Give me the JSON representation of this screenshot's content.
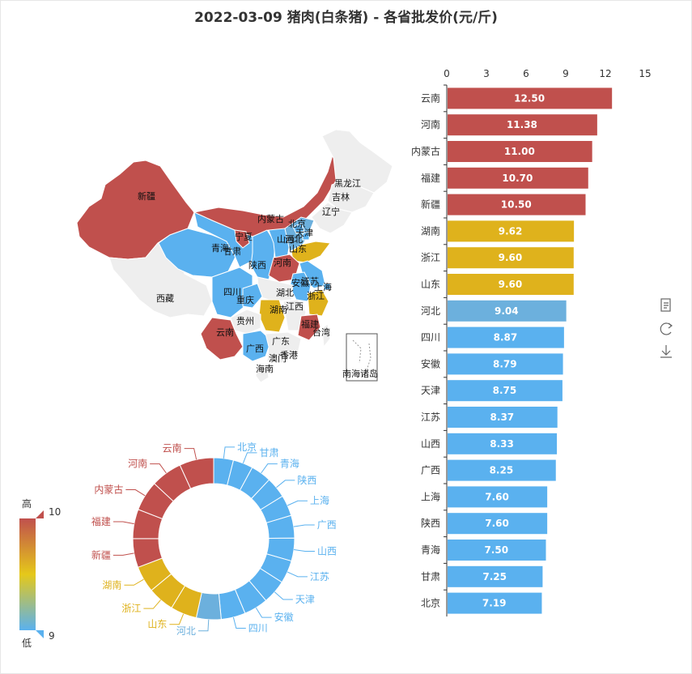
{
  "title": "2022-03-09 猪肉(白条猪) - 各省批发价(元/斤)",
  "colors": {
    "high": "#c0504d",
    "mid": "#dfb21c",
    "low": "#5ab1ef",
    "low2": "#6cb0dd",
    "none": "#eeeeee"
  },
  "visual_map": {
    "high_label": "高",
    "low_label": "低",
    "max": "10",
    "min": "9"
  },
  "map_labels": [
    "新疆",
    "西藏",
    "青海",
    "甘肃",
    "内蒙古",
    "宁夏",
    "陕西",
    "四川",
    "重庆",
    "云南",
    "贵州",
    "广西",
    "广东",
    "海南",
    "湖南",
    "湖北",
    "河南",
    "山西",
    "河北",
    "北京",
    "天津",
    "辽宁",
    "吉林",
    "黑龙江",
    "山东",
    "江苏",
    "安徽",
    "上海",
    "浙江",
    "江西",
    "福建",
    "台湾",
    "澳门",
    "香港",
    "南海诸岛"
  ],
  "toolbox": [
    "data-view-icon",
    "restore-icon",
    "save-image-icon"
  ],
  "chart_data": [
    {
      "type": "bar",
      "orientation": "horizontal",
      "xlim": [
        0,
        15
      ],
      "ticks": [
        "0",
        "3",
        "6",
        "9",
        "12",
        "15"
      ],
      "categories": [
        "云南",
        "河南",
        "内蒙古",
        "福建",
        "新疆",
        "湖南",
        "浙江",
        "山东",
        "河北",
        "四川",
        "安徽",
        "天津",
        "江苏",
        "山西",
        "广西",
        "上海",
        "陕西",
        "青海",
        "甘肃",
        "北京"
      ],
      "values": [
        12.5,
        11.38,
        11.0,
        10.7,
        10.5,
        9.62,
        9.6,
        9.6,
        9.04,
        8.87,
        8.79,
        8.75,
        8.37,
        8.33,
        8.25,
        7.6,
        7.6,
        7.5,
        7.25,
        7.19
      ],
      "labels": [
        "12.50",
        "11.38",
        "11.00",
        "10.70",
        "10.50",
        "9.62",
        "9.60",
        "9.60",
        "9.04",
        "8.87",
        "8.79",
        "8.75",
        "8.37",
        "8.33",
        "8.25",
        "7.60",
        "7.60",
        "7.50",
        "7.25",
        "7.19"
      ],
      "colors": [
        "#c0504d",
        "#c0504d",
        "#c0504d",
        "#c0504d",
        "#c0504d",
        "#dfb21c",
        "#dfb21c",
        "#dfb21c",
        "#6cb0dd",
        "#5ab1ef",
        "#5ab1ef",
        "#5ab1ef",
        "#5ab1ef",
        "#5ab1ef",
        "#5ab1ef",
        "#5ab1ef",
        "#5ab1ef",
        "#5ab1ef",
        "#5ab1ef",
        "#5ab1ef"
      ]
    },
    {
      "type": "pie",
      "donut": true,
      "slices": [
        "北京",
        "甘肃",
        "青海",
        "陕西",
        "上海",
        "广西",
        "山西",
        "江苏",
        "天津",
        "安徽",
        "四川",
        "河北",
        "山东",
        "浙江",
        "湖南",
        "新疆",
        "福建",
        "内蒙古",
        "河南",
        "云南"
      ],
      "values": [
        7.19,
        7.25,
        7.5,
        7.6,
        7.6,
        8.25,
        8.33,
        8.37,
        8.75,
        8.79,
        8.87,
        9.04,
        9.6,
        9.6,
        9.62,
        10.5,
        10.7,
        11.0,
        11.38,
        12.5
      ],
      "colors": [
        "#5ab1ef",
        "#5ab1ef",
        "#5ab1ef",
        "#5ab1ef",
        "#5ab1ef",
        "#5ab1ef",
        "#5ab1ef",
        "#5ab1ef",
        "#5ab1ef",
        "#5ab1ef",
        "#5ab1ef",
        "#6cb0dd",
        "#dfb21c",
        "#dfb21c",
        "#dfb21c",
        "#c0504d",
        "#c0504d",
        "#c0504d",
        "#c0504d",
        "#c0504d"
      ]
    }
  ]
}
